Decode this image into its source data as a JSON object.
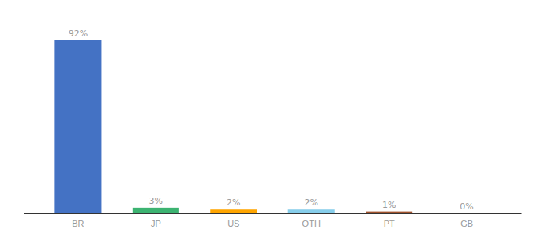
{
  "chart_data": {
    "type": "bar",
    "categories": [
      "BR",
      "JP",
      "US",
      "OTH",
      "PT",
      "GB"
    ],
    "values": [
      92,
      3,
      2,
      2,
      1,
      0
    ],
    "value_labels": [
      "92%",
      "3%",
      "2%",
      "2%",
      "1%",
      "0%"
    ],
    "colors": [
      "#4472C4",
      "#3CB371",
      "#FFA500",
      "#87CEEB",
      "#A0522D",
      "#A0522D"
    ],
    "ylim": [
      0,
      105
    ],
    "data_labels": true,
    "tick_labels": "x"
  }
}
